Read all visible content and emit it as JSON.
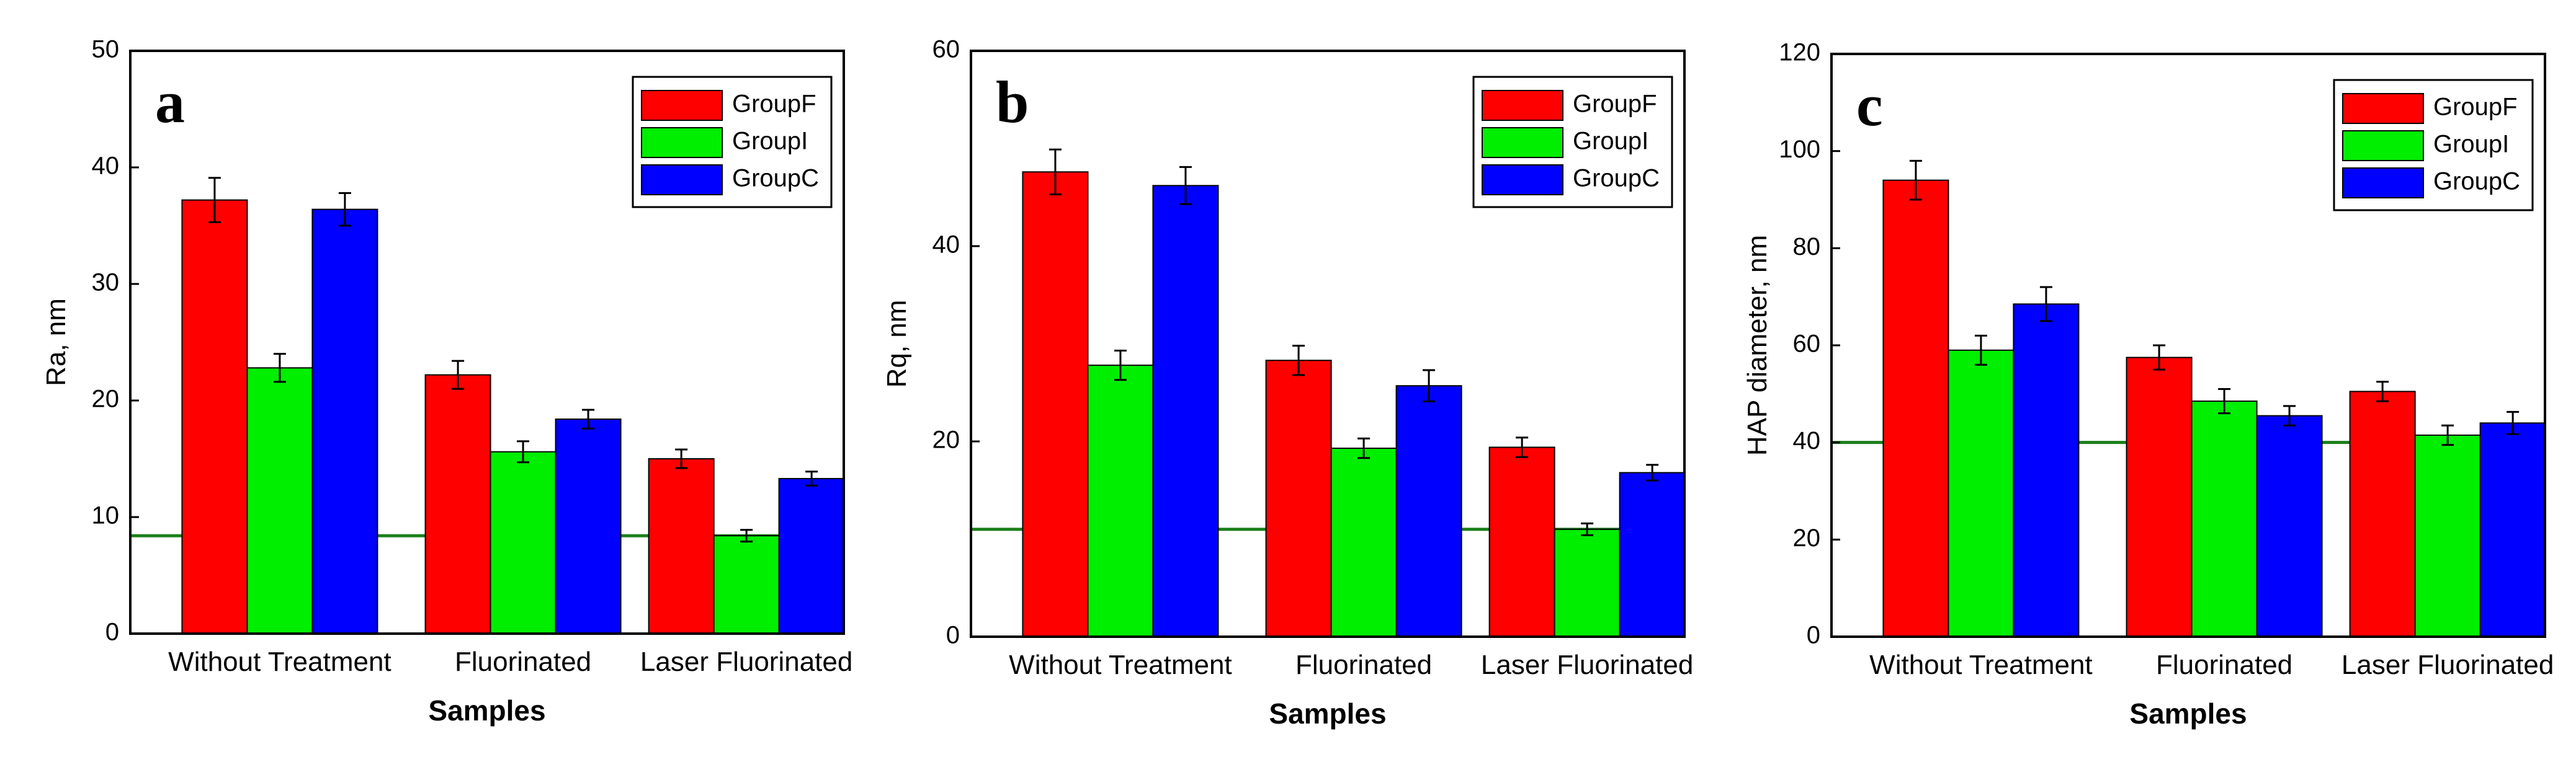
{
  "colors": {
    "GroupF": "#ff0000",
    "GroupI": "#00ee00",
    "GroupC": "#0000ff",
    "reference_line": "#1a7f1a",
    "error_bar": "#000000"
  },
  "chart_data": [
    {
      "type": "bar",
      "panel_label": "a",
      "categories": [
        "Without Treatment",
        "Fluorinated",
        "Laser Fluorinated"
      ],
      "series": [
        {
          "name": "GroupF",
          "values": [
            37.2,
            22.2,
            15.0
          ],
          "errors": [
            1.9,
            1.2,
            0.8
          ]
        },
        {
          "name": "GroupI",
          "values": [
            22.8,
            15.6,
            8.4
          ],
          "errors": [
            1.2,
            0.9,
            0.5
          ]
        },
        {
          "name": "GroupC",
          "values": [
            36.4,
            18.4,
            13.3
          ],
          "errors": [
            1.4,
            0.8,
            0.6
          ]
        }
      ],
      "reference_line": 8.4,
      "xlabel": "Samples",
      "ylabel": "Ra, nm",
      "ylim": [
        0,
        50
      ],
      "yticks": [
        "0",
        "10",
        "20",
        "30",
        "40",
        "50"
      ],
      "legend": [
        "GroupF",
        "GroupI",
        "GroupC"
      ],
      "legend_position": "top-right"
    },
    {
      "type": "bar",
      "panel_label": "b",
      "categories": [
        "Without Treatment",
        "Fluorinated",
        "Laser Fluorinated"
      ],
      "series": [
        {
          "name": "GroupF",
          "values": [
            47.6,
            28.3,
            19.4
          ],
          "errors": [
            2.3,
            1.5,
            1.0
          ]
        },
        {
          "name": "GroupI",
          "values": [
            27.8,
            19.3,
            11.0
          ],
          "errors": [
            1.5,
            1.0,
            0.6
          ]
        },
        {
          "name": "GroupC",
          "values": [
            46.2,
            25.7,
            16.8
          ],
          "errors": [
            1.9,
            1.6,
            0.8
          ]
        }
      ],
      "reference_line": 11,
      "xlabel": "Samples",
      "ylabel": "Rq, nm",
      "ylim": [
        0,
        60
      ],
      "yticks": [
        "0",
        "20",
        "40",
        "60"
      ],
      "legend": [
        "GroupF",
        "GroupI",
        "GroupC"
      ],
      "legend_position": "top-right"
    },
    {
      "type": "bar",
      "panel_label": "c",
      "categories": [
        "Without Treatment",
        "Fluorinated",
        "Laser Fluorinated"
      ],
      "series": [
        {
          "name": "GroupF",
          "values": [
            94,
            57.5,
            50.5
          ],
          "errors": [
            4.0,
            2.5,
            2.0
          ]
        },
        {
          "name": "GroupI",
          "values": [
            59,
            48.5,
            41.5
          ],
          "errors": [
            3.0,
            2.5,
            2.0
          ]
        },
        {
          "name": "GroupC",
          "values": [
            68.5,
            45.5,
            44
          ],
          "errors": [
            3.5,
            2.0,
            2.3
          ]
        }
      ],
      "reference_line": 40,
      "xlabel": "Samples",
      "ylabel": "HAP diameter, nm",
      "ylim": [
        0,
        120
      ],
      "yticks": [
        "0",
        "20",
        "40",
        "60",
        "80",
        "100",
        "120"
      ],
      "legend": [
        "GroupF",
        "GroupI",
        "GroupC"
      ],
      "legend_position": "top-right"
    }
  ]
}
